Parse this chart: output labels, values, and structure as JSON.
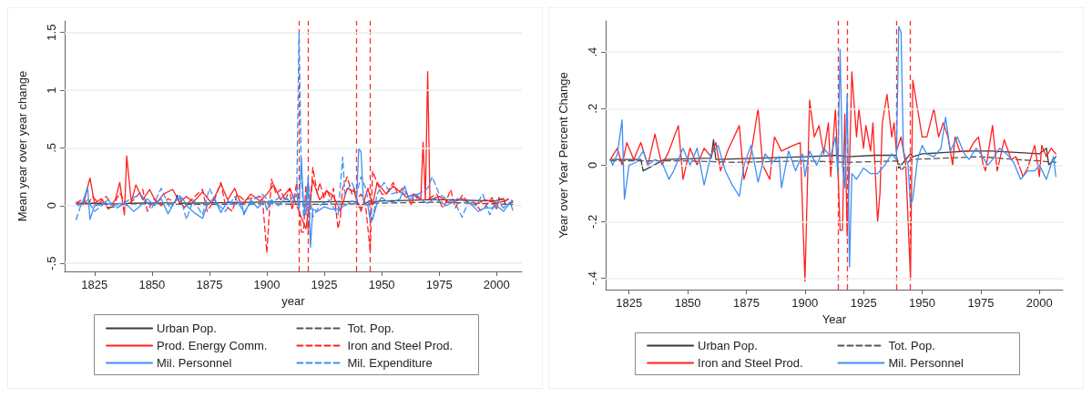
{
  "chart_data": [
    {
      "type": "line",
      "xlabel": "year",
      "ylabel": "Mean year over year change",
      "xlim": [
        1812,
        2011
      ],
      "xticks": [
        1825,
        1850,
        1875,
        1900,
        1925,
        1950,
        1975,
        2000
      ],
      "ylim": [
        -0.57,
        1.6
      ],
      "yticks": [
        {
          "value": -0.5,
          "label": "-.5"
        },
        {
          "value": 0,
          "label": "0"
        },
        {
          "value": 0.5,
          "label": ".5"
        },
        {
          "value": 1,
          "label": "1"
        },
        {
          "value": 1.5,
          "label": "1.5"
        }
      ],
      "grid": "y",
      "legend": "bottom",
      "marker": "none",
      "ref_lines": [
        {
          "axis": "x",
          "value": 1914,
          "color": "#ff3030",
          "line_style": "dashed"
        },
        {
          "axis": "x",
          "value": 1918,
          "color": "#ff3030",
          "line_style": "dashed"
        },
        {
          "axis": "x",
          "value": 1939,
          "color": "#ff3030",
          "line_style": "dashed"
        },
        {
          "axis": "x",
          "value": 1945,
          "color": "#ff3030",
          "line_style": "dashed"
        }
      ],
      "series": [
        {
          "name": "Urban Pop.",
          "color": "#3a3a3a",
          "line_style": "solid",
          "x": [
            1817,
            1830,
            1831,
            1840,
            1860,
            1861,
            1862,
            1880,
            1900,
            1914,
            1918,
            1930,
            1939,
            1940,
            1945,
            1946,
            1950,
            1960,
            1970,
            1980,
            1990,
            2000,
            2003,
            2004,
            2007
          ],
          "values": [
            0.02,
            0.02,
            -0.02,
            0.02,
            0.025,
            0.09,
            0.02,
            0.025,
            0.03,
            0.035,
            0.03,
            0.035,
            0.035,
            -0.01,
            0.04,
            0.03,
            0.04,
            0.045,
            0.05,
            0.05,
            0.045,
            0.04,
            0.06,
            0.0,
            0.03
          ]
        },
        {
          "name": "Tot. Pop.",
          "color": "#555555",
          "line_style": "dashed",
          "x": [
            1817,
            1850,
            1870,
            1900,
            1918,
            1940,
            1941,
            1945,
            1960,
            1975,
            1990,
            2000,
            2007
          ],
          "values": [
            0.015,
            0.015,
            0.01,
            0.015,
            0.01,
            0.015,
            -0.02,
            0.02,
            0.025,
            0.03,
            0.02,
            0.015,
            0.01
          ]
        },
        {
          "name": "Prod. Energy Comm.",
          "color": "#ff2020",
          "line_style": "solid",
          "x": [
            1817,
            1820,
            1823,
            1825,
            1828,
            1831,
            1834,
            1836,
            1838,
            1839,
            1841,
            1843,
            1846,
            1849,
            1852,
            1855,
            1859,
            1862,
            1865,
            1868,
            1872,
            1876,
            1880,
            1883,
            1886,
            1889,
            1893,
            1897,
            1900,
            1903,
            1906,
            1910,
            1913,
            1915,
            1917,
            1920,
            1923,
            1926,
            1929,
            1932,
            1935,
            1938,
            1941,
            1944,
            1946,
            1948,
            1952,
            1955,
            1958,
            1961,
            1964,
            1967,
            1968,
            1969,
            1970,
            1971,
            1975,
            1980,
            1985,
            1990,
            1995,
            2000,
            2005
          ],
          "values": [
            0.03,
            0.0,
            0.24,
            0.02,
            0.06,
            -0.03,
            0.05,
            0.2,
            -0.08,
            0.43,
            0.03,
            0.18,
            0.05,
            0.14,
            0.02,
            0.1,
            0.14,
            0.03,
            0.08,
            0.03,
            0.12,
            0.02,
            0.19,
            0.05,
            0.15,
            0.0,
            0.1,
            0.04,
            0.1,
            0.18,
            0.05,
            0.15,
            0.0,
            -0.1,
            -0.2,
            0.22,
            0.05,
            0.13,
            0.08,
            -0.05,
            0.15,
            0.12,
            -0.05,
            0.15,
            0.0,
            0.2,
            0.1,
            0.17,
            0.12,
            0.07,
            0.1,
            0.05,
            0.55,
            0.05,
            1.16,
            0.05,
            0.08,
            0.02,
            0.06,
            0.0,
            0.05,
            0.02,
            0.05
          ]
        },
        {
          "name": "Iron and Steel Prod.",
          "color": "#ff2020",
          "line_style": "dashed",
          "x": [
            1817,
            1820,
            1822,
            1824,
            1827,
            1830,
            1833,
            1836,
            1839,
            1842,
            1846,
            1848,
            1851,
            1854,
            1857,
            1860,
            1862,
            1864,
            1867,
            1872,
            1874,
            1877,
            1880,
            1882,
            1885,
            1887,
            1890,
            1895,
            1898,
            1900,
            1902,
            1904,
            1906,
            1908,
            1910,
            1911,
            1913,
            1914,
            1915,
            1916,
            1917,
            1918,
            1919,
            1920,
            1922,
            1923,
            1925,
            1926,
            1928,
            1929,
            1931,
            1932,
            1933,
            1935,
            1937,
            1938,
            1939,
            1941,
            1943,
            1945,
            1946,
            1948,
            1950,
            1952,
            1955,
            1957,
            1959,
            1961,
            1963,
            1964,
            1966,
            1970,
            1972,
            1974,
            1976,
            1977,
            1980,
            1982,
            1985,
            1988,
            1990,
            1993,
            1995,
            1998,
            2000,
            2001,
            2003,
            2005,
            2007
          ],
          "values": [
            0.02,
            0.06,
            0.0,
            0.08,
            0.02,
            0.08,
            0.0,
            0.11,
            0.0,
            0.05,
            0.14,
            -0.05,
            0.06,
            0.0,
            0.06,
            0.03,
            0.08,
            -0.02,
            0.05,
            0.14,
            -0.05,
            0.04,
            0.2,
            0.0,
            -0.05,
            0.1,
            0.05,
            0.07,
            0.08,
            -0.41,
            0.23,
            0.1,
            0.14,
            0.04,
            0.15,
            -0.04,
            0.2,
            0.0,
            -0.23,
            -0.23,
            0.18,
            -0.25,
            0.0,
            0.33,
            0.1,
            0.2,
            0.06,
            0.14,
            0.05,
            0.15,
            -0.2,
            -0.1,
            0.15,
            0.25,
            0.1,
            0.15,
            0.05,
            0.1,
            0.0,
            -0.4,
            0.3,
            0.2,
            0.1,
            0.1,
            0.2,
            0.1,
            0.15,
            0.1,
            0.0,
            0.1,
            0.05,
            0.05,
            0.08,
            0.1,
            0.0,
            -0.02,
            0.14,
            -0.02,
            0.09,
            0.02,
            0.03,
            -0.04,
            -0.01,
            0.07,
            -0.04,
            0.07,
            0.03,
            0.06,
            0.04
          ]
        },
        {
          "name": "Mil. Personnel",
          "color": "#3d8ff5",
          "line_style": "solid",
          "x": [
            1817,
            1818,
            1820,
            1822,
            1823,
            1825,
            1828,
            1831,
            1833,
            1836,
            1839,
            1842,
            1844,
            1848,
            1851,
            1854,
            1857,
            1860,
            1863,
            1866,
            1869,
            1872,
            1874,
            1877,
            1880,
            1883,
            1886,
            1889,
            1890,
            1893,
            1896,
            1899,
            1900,
            1902,
            1905,
            1908,
            1911,
            1913,
            1914,
            1915,
            1916,
            1917,
            1918,
            1919,
            1920,
            1922,
            1925,
            1928,
            1931,
            1934,
            1937,
            1939,
            1940,
            1941,
            1942,
            1944,
            1945,
            1946,
            1948,
            1950,
            1952,
            1955,
            1958,
            1960,
            1962,
            1965,
            1968,
            1970,
            1973,
            1975,
            1978,
            1980,
            1983,
            1986,
            1989,
            1992,
            1995,
            1998,
            2000,
            2003,
            2006,
            2007
          ],
          "values": [
            0.02,
            0.0,
            0.04,
            0.16,
            -0.12,
            0.0,
            0.01,
            0.05,
            0.0,
            0.02,
            0.01,
            -0.05,
            -0.02,
            0.06,
            0.0,
            0.06,
            -0.07,
            0.04,
            0.07,
            -0.02,
            -0.07,
            -0.11,
            0.0,
            0.07,
            -0.06,
            0.04,
            0.01,
            0.03,
            -0.08,
            0.05,
            -0.02,
            0.04,
            -0.04,
            0.05,
            0.0,
            0.06,
            0.03,
            0.1,
            -0.03,
            0.41,
            0.0,
            -0.08,
            0.25,
            -0.36,
            -0.03,
            -0.05,
            -0.01,
            -0.03,
            -0.03,
            0.0,
            0.04,
            0.02,
            0.49,
            0.47,
            0.05,
            0.0,
            -0.14,
            -0.12,
            0.02,
            0.07,
            0.04,
            0.03,
            0.06,
            0.17,
            0.05,
            0.1,
            0.04,
            0.02,
            0.06,
            0.04,
            0.0,
            0.02,
            0.06,
            0.04,
            0.01,
            -0.05,
            -0.02,
            -0.02,
            0.0,
            -0.05,
            0.03,
            -0.04
          ]
        },
        {
          "name": "Mil. Expenditure",
          "color": "#3d8ff5",
          "line_style": "dashed",
          "x": [
            1817,
            1819,
            1822,
            1825,
            1830,
            1835,
            1840,
            1845,
            1850,
            1854,
            1858,
            1862,
            1865,
            1868,
            1872,
            1875,
            1878,
            1882,
            1886,
            1890,
            1894,
            1898,
            1902,
            1906,
            1910,
            1913,
            1914,
            1915,
            1916,
            1918,
            1920,
            1923,
            1927,
            1931,
            1933,
            1934,
            1937,
            1939,
            1941,
            1943,
            1946,
            1948,
            1951,
            1954,
            1958,
            1962,
            1966,
            1970,
            1972,
            1975,
            1978,
            1982,
            1985,
            1988,
            1991,
            1994,
            1997,
            2000,
            2003,
            2007
          ],
          "values": [
            -0.12,
            0.0,
            0.05,
            -0.05,
            0.03,
            -0.02,
            0.05,
            0.1,
            -0.02,
            0.15,
            -0.03,
            0.1,
            -0.12,
            0.05,
            -0.08,
            0.15,
            0.02,
            -0.05,
            0.08,
            -0.06,
            0.05,
            0.1,
            0.02,
            0.08,
            0.05,
            0.1,
            1.5,
            0.3,
            -0.1,
            0.2,
            -0.1,
            0.0,
            0.05,
            -0.08,
            0.42,
            0.1,
            0.2,
            0.1,
            0.25,
            0.15,
            -0.12,
            0.1,
            0.2,
            0.1,
            0.12,
            0.08,
            0.1,
            0.15,
            0.25,
            0.1,
            0.06,
            0.02,
            -0.1,
            0.05,
            0.0,
            0.1,
            -0.08,
            0.05,
            -0.02,
            0.05
          ]
        }
      ]
    },
    {
      "type": "line",
      "xlabel": "Year",
      "ylabel": "Year over Year Percent Change",
      "xlim": [
        1815,
        2010
      ],
      "xticks": [
        1825,
        1850,
        1875,
        1900,
        1925,
        1950,
        1975,
        2000
      ],
      "ylim": [
        -0.44,
        0.51
      ],
      "yticks": [
        {
          "value": -0.4,
          "label": "-.4"
        },
        {
          "value": -0.2,
          "label": "-.2"
        },
        {
          "value": 0,
          "label": "0"
        },
        {
          "value": 0.2,
          "label": ".2"
        },
        {
          "value": 0.4,
          "label": ".4"
        }
      ],
      "grid": "y",
      "legend": "bottom",
      "marker": "none",
      "ref_lines": [
        {
          "axis": "x",
          "value": 1914,
          "color": "#ff3030",
          "line_style": "dashed"
        },
        {
          "axis": "x",
          "value": 1918,
          "color": "#ff3030",
          "line_style": "dashed"
        },
        {
          "axis": "x",
          "value": 1939,
          "color": "#ff3030",
          "line_style": "dashed"
        },
        {
          "axis": "x",
          "value": 1945,
          "color": "#ff3030",
          "line_style": "dashed"
        }
      ],
      "series": [
        {
          "name": "Urban Pop.",
          "color": "#3a3a3a",
          "line_style": "solid",
          "x": [
            1817,
            1830,
            1831,
            1840,
            1860,
            1861,
            1862,
            1880,
            1900,
            1914,
            1918,
            1930,
            1939,
            1940,
            1945,
            1946,
            1950,
            1960,
            1970,
            1980,
            1990,
            2000,
            2003,
            2004,
            2007
          ],
          "values": [
            0.02,
            0.02,
            -0.02,
            0.02,
            0.025,
            0.09,
            0.02,
            0.025,
            0.03,
            0.035,
            0.03,
            0.035,
            0.035,
            -0.01,
            0.04,
            0.03,
            0.04,
            0.045,
            0.05,
            0.05,
            0.045,
            0.04,
            0.06,
            0.0,
            0.03
          ]
        },
        {
          "name": "Tot. Pop.",
          "color": "#555555",
          "line_style": "dashed",
          "x": [
            1817,
            1850,
            1870,
            1900,
            1918,
            1940,
            1941,
            1945,
            1960,
            1975,
            1990,
            2000,
            2007
          ],
          "values": [
            0.015,
            0.015,
            0.01,
            0.015,
            0.01,
            0.015,
            -0.02,
            0.02,
            0.025,
            0.03,
            0.02,
            0.015,
            0.01
          ]
        },
        {
          "name": "Iron and Steel Prod.",
          "color": "#ff2020",
          "line_style": "solid",
          "x": [
            1817,
            1820,
            1822,
            1824,
            1827,
            1830,
            1833,
            1836,
            1839,
            1842,
            1846,
            1848,
            1851,
            1854,
            1857,
            1860,
            1862,
            1864,
            1867,
            1872,
            1874,
            1877,
            1880,
            1882,
            1885,
            1887,
            1890,
            1895,
            1898,
            1900,
            1902,
            1904,
            1906,
            1908,
            1910,
            1911,
            1913,
            1914,
            1915,
            1916,
            1917,
            1918,
            1919,
            1920,
            1922,
            1923,
            1925,
            1926,
            1928,
            1929,
            1931,
            1932,
            1933,
            1935,
            1937,
            1938,
            1939,
            1941,
            1943,
            1945,
            1946,
            1948,
            1950,
            1952,
            1955,
            1957,
            1959,
            1961,
            1963,
            1964,
            1966,
            1970,
            1972,
            1974,
            1976,
            1977,
            1980,
            1982,
            1985,
            1988,
            1990,
            1993,
            1995,
            1998,
            2000,
            2001,
            2003,
            2005,
            2007
          ],
          "values": [
            0.02,
            0.06,
            0.0,
            0.08,
            0.02,
            0.08,
            0.0,
            0.11,
            0.0,
            0.05,
            0.14,
            -0.05,
            0.06,
            0.0,
            0.06,
            0.03,
            0.08,
            -0.02,
            0.05,
            0.14,
            -0.05,
            0.04,
            0.2,
            0.0,
            -0.05,
            0.1,
            0.05,
            0.07,
            0.08,
            -0.41,
            0.23,
            0.1,
            0.14,
            0.04,
            0.15,
            -0.04,
            0.2,
            0.0,
            -0.23,
            -0.23,
            0.18,
            -0.25,
            0.0,
            0.33,
            0.1,
            0.2,
            0.06,
            0.14,
            0.05,
            0.15,
            -0.2,
            -0.1,
            0.15,
            0.25,
            0.1,
            0.15,
            0.05,
            0.1,
            0.0,
            -0.4,
            0.3,
            0.2,
            0.1,
            0.1,
            0.2,
            0.1,
            0.15,
            0.1,
            0.0,
            0.1,
            0.05,
            0.05,
            0.08,
            0.1,
            0.0,
            -0.02,
            0.14,
            -0.02,
            0.09,
            0.02,
            0.03,
            -0.04,
            -0.01,
            0.07,
            -0.04,
            0.07,
            0.03,
            0.06,
            0.04
          ]
        },
        {
          "name": "Mil. Personnel",
          "color": "#3d8ff5",
          "line_style": "solid",
          "x": [
            1817,
            1818,
            1820,
            1822,
            1823,
            1825,
            1828,
            1831,
            1833,
            1836,
            1839,
            1842,
            1844,
            1848,
            1851,
            1854,
            1857,
            1860,
            1863,
            1866,
            1869,
            1872,
            1874,
            1877,
            1880,
            1883,
            1886,
            1889,
            1890,
            1893,
            1896,
            1899,
            1900,
            1902,
            1905,
            1908,
            1911,
            1913,
            1914,
            1915,
            1916,
            1917,
            1918,
            1919,
            1920,
            1922,
            1925,
            1928,
            1931,
            1934,
            1937,
            1939,
            1940,
            1941,
            1942,
            1944,
            1945,
            1946,
            1948,
            1950,
            1952,
            1955,
            1958,
            1960,
            1962,
            1965,
            1968,
            1970,
            1973,
            1975,
            1978,
            1980,
            1983,
            1986,
            1989,
            1992,
            1995,
            1998,
            2000,
            2003,
            2006,
            2007
          ],
          "values": [
            0.02,
            0.0,
            0.04,
            0.16,
            -0.12,
            0.0,
            0.01,
            0.05,
            0.0,
            0.02,
            0.01,
            -0.05,
            -0.02,
            0.06,
            0.0,
            0.06,
            -0.07,
            0.04,
            0.07,
            -0.02,
            -0.07,
            -0.11,
            0.0,
            0.07,
            -0.06,
            0.04,
            0.01,
            0.03,
            -0.08,
            0.05,
            -0.02,
            0.04,
            -0.04,
            0.05,
            0.0,
            0.06,
            0.03,
            0.1,
            -0.03,
            0.41,
            0.0,
            -0.08,
            0.25,
            -0.36,
            -0.03,
            -0.05,
            -0.01,
            -0.03,
            -0.03,
            0.0,
            0.04,
            0.02,
            0.49,
            0.47,
            0.05,
            0.0,
            -0.14,
            -0.12,
            0.02,
            0.07,
            0.04,
            0.03,
            0.06,
            0.17,
            0.05,
            0.1,
            0.04,
            0.02,
            0.06,
            0.04,
            0.0,
            0.02,
            0.06,
            0.04,
            0.01,
            -0.05,
            -0.02,
            -0.02,
            0.0,
            -0.05,
            0.03,
            -0.04
          ]
        }
      ]
    }
  ]
}
